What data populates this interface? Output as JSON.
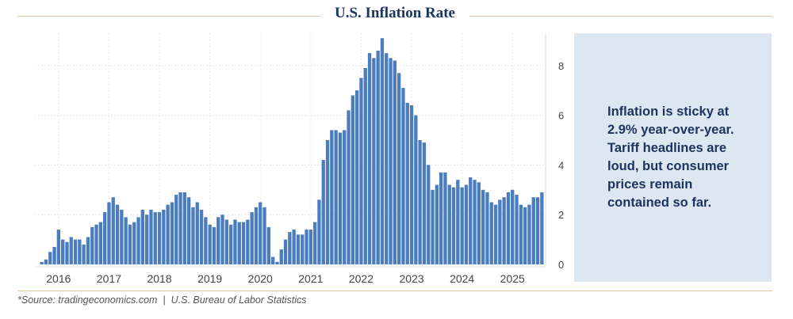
{
  "header": {
    "title": "U.S. Inflation Rate"
  },
  "note": {
    "text": "Inflation is sticky at 2.9% year-over-year. Tariff headlines are loud, but consumer prices remain contained so far."
  },
  "footer": {
    "source": "*Source: tradingeconomics.com  |  U.S. Bureau of Labor Statistics"
  },
  "colors": {
    "bar": "#4a7cbe",
    "title": "#1b3560",
    "rule": "#d8c9a3",
    "note_bg": "#dde7f1"
  },
  "chart_data": {
    "type": "bar",
    "title": "U.S. Inflation Rate",
    "xlabel": "",
    "ylabel": "",
    "ylim": [
      0,
      9.3
    ],
    "y_ticks": [
      0,
      2,
      4,
      6,
      8
    ],
    "x_ticks": [
      "2016",
      "2017",
      "2018",
      "2019",
      "2020",
      "2021",
      "2022",
      "2023",
      "2024",
      "2025"
    ],
    "start": "2015-09",
    "frequency": "monthly",
    "grid": true,
    "y_axis_side": "right",
    "values": [
      0.1,
      0.2,
      0.5,
      0.7,
      1.4,
      1.0,
      0.9,
      1.1,
      1.0,
      1.0,
      0.8,
      1.1,
      1.5,
      1.6,
      1.7,
      2.1,
      2.5,
      2.7,
      2.4,
      2.2,
      1.9,
      1.6,
      1.7,
      1.9,
      2.2,
      2.0,
      2.2,
      2.1,
      2.1,
      2.2,
      2.4,
      2.5,
      2.8,
      2.9,
      2.9,
      2.7,
      2.3,
      2.5,
      2.2,
      1.9,
      1.6,
      1.5,
      1.9,
      2.0,
      1.8,
      1.6,
      1.8,
      1.7,
      1.7,
      1.8,
      2.1,
      2.3,
      2.5,
      2.3,
      1.5,
      0.3,
      0.1,
      0.6,
      1.0,
      1.3,
      1.4,
      1.2,
      1.2,
      1.4,
      1.4,
      1.7,
      2.6,
      4.2,
      5.0,
      5.4,
      5.4,
      5.3,
      5.4,
      6.2,
      6.8,
      7.0,
      7.5,
      7.9,
      8.5,
      8.3,
      8.6,
      9.1,
      8.5,
      8.3,
      8.2,
      7.7,
      7.1,
      6.5,
      6.4,
      6.0,
      5.0,
      4.9,
      4.0,
      3.0,
      3.2,
      3.7,
      3.7,
      3.2,
      3.1,
      3.4,
      3.1,
      3.2,
      3.5,
      3.4,
      3.3,
      3.0,
      2.9,
      2.5,
      2.4,
      2.6,
      2.7,
      2.9,
      3.0,
      2.8,
      2.4,
      2.3,
      2.4,
      2.7,
      2.7,
      2.9
    ]
  }
}
